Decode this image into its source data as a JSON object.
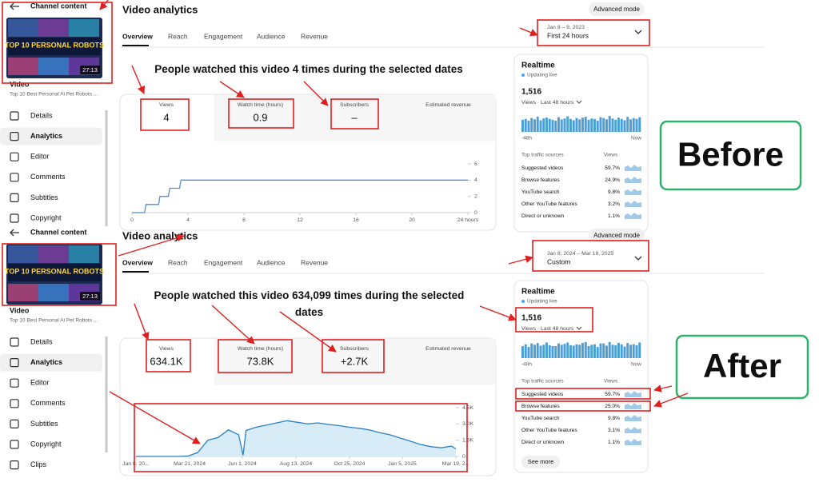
{
  "panels": [
    {
      "label": "Before",
      "sidebar": {
        "back": "Channel content",
        "thumb_title": "TOP 10 PERSONAL ROBOTS",
        "duration": "27:13",
        "video_label": "Video",
        "video_title": "Top 10 Best Personal Ai Pet Robots ...",
        "nav": [
          "Details",
          "Analytics",
          "Editor",
          "Comments",
          "Subtitles",
          "Copyright"
        ],
        "active": "Analytics"
      },
      "header": {
        "title": "Video analytics",
        "advanced": "Advanced mode",
        "tabs": [
          "Overview",
          "Reach",
          "Engagement",
          "Audience",
          "Revenue"
        ],
        "date_range": "Jan 8 – 9, 2023",
        "date_preset": "First 24 hours"
      },
      "headline": "People watched this video 4 times during the selected dates",
      "cards": [
        {
          "label": "Views",
          "value": "4"
        },
        {
          "label": "Watch time (hours)",
          "value": "0.9"
        },
        {
          "label": "Subscribers",
          "value": "–"
        },
        {
          "label": "Estimated revenue"
        }
      ],
      "chart": {
        "type": "line",
        "color": "#4f8fd6",
        "area": false,
        "x": [
          0,
          0.9,
          1,
          1.9,
          2,
          2.6,
          2.7,
          3.4,
          3.5,
          24
        ],
        "values": [
          0,
          0,
          1,
          1,
          2,
          2,
          3,
          3,
          4,
          4
        ],
        "xlim": [
          0,
          24
        ],
        "ylim": [
          0,
          6
        ],
        "xticks": [
          0,
          4,
          8,
          12,
          16,
          20,
          {
            "value": 24,
            "label": "24 hours"
          }
        ],
        "yticks": [
          0,
          2,
          4,
          6
        ]
      },
      "realtime": {
        "title": "Realtime",
        "status": "Updating live",
        "count": "1,516",
        "period": "Views · Last 48 hours",
        "bars": [
          28,
          30,
          26,
          32,
          29,
          35,
          27,
          31,
          33,
          30,
          28,
          26,
          34,
          29,
          31,
          36,
          30,
          27,
          32,
          29,
          33,
          35,
          28,
          31,
          30,
          26,
          34,
          32,
          29,
          37,
          31,
          28,
          33,
          30,
          27,
          35,
          29,
          32,
          30,
          34
        ],
        "start": "-48h",
        "end": "Now",
        "sources_title": "Top traffic sources",
        "views_header": "Views",
        "sources": [
          {
            "name": "Suggested videos",
            "share": "59.7%"
          },
          {
            "name": "Browse features",
            "share": "24.9%"
          },
          {
            "name": "YouTube search",
            "share": "9.8%"
          },
          {
            "name": "Other YouTube features",
            "share": "3.2%"
          },
          {
            "name": "Direct or unknown",
            "share": "1.1%"
          }
        ]
      }
    },
    {
      "label": "After",
      "sidebar": {
        "back": "Channel content",
        "thumb_title": "TOP 10 PERSONAL ROBOTS",
        "duration": "27:13",
        "video_label": "Video",
        "video_title": "Top 10 Best Personal Ai Pet Robots ...",
        "nav": [
          "Details",
          "Analytics",
          "Editor",
          "Comments",
          "Subtitles",
          "Copyright",
          "Clips"
        ],
        "active": "Analytics"
      },
      "header": {
        "title": "Video analytics",
        "advanced": "Advanced mode",
        "tabs": [
          "Overview",
          "Reach",
          "Engagement",
          "Audience",
          "Revenue"
        ],
        "date_range": "Jan 8, 2024 – Mar 19, 2025",
        "date_preset": "Custom"
      },
      "headline": "People watched this video 634,099 times during the selected dates",
      "cards": [
        {
          "label": "Views",
          "value": "634.1K"
        },
        {
          "label": "Watch time (hours)",
          "value": "73.8K"
        },
        {
          "label": "Subscribers",
          "value": "+2.7K"
        },
        {
          "label": "Estimated revenue"
        }
      ],
      "chart": {
        "type": "line",
        "color": "#2a7fc4",
        "area": true,
        "area_color": "#d8ecf8",
        "x": [
          0,
          14,
          28,
          42,
          56,
          70,
          84,
          98,
          112,
          126,
          140,
          146,
          150,
          164,
          178,
          192,
          206,
          220,
          234,
          248,
          262,
          276,
          290,
          304,
          318,
          332,
          346,
          360,
          374,
          388,
          402,
          416,
          430,
          436
        ],
        "values": [
          0,
          0,
          0,
          0,
          0,
          20,
          350,
          1500,
          1750,
          2450,
          2000,
          100,
          2400,
          2700,
          2900,
          3100,
          3300,
          3150,
          3000,
          3100,
          2950,
          2850,
          2700,
          2600,
          2450,
          2200,
          2000,
          1700,
          1400,
          1100,
          900,
          800,
          950,
          700
        ],
        "xlim": [
          0,
          436
        ],
        "ylim": [
          0,
          4500
        ],
        "xticks": [
          {
            "value": 0,
            "label": "Jan 8, 20..."
          },
          {
            "value": 73,
            "label": "Mar 21, 2024"
          },
          {
            "value": 145,
            "label": "Jun 1, 2024"
          },
          {
            "value": 218,
            "label": "Aug 13, 2024"
          },
          {
            "value": 291,
            "label": "Oct 25, 2024"
          },
          {
            "value": 363,
            "label": "Jan 5, 2025"
          },
          {
            "value": 436,
            "label": "Mar 19, 2..."
          }
        ],
        "yticks": [
          0,
          {
            "value": 1500,
            "label": "1.5K"
          },
          {
            "value": 3000,
            "label": "3.0K"
          },
          {
            "value": 4500,
            "label": "4.5K"
          }
        ]
      },
      "realtime": {
        "title": "Realtime",
        "status": "Updating live",
        "count": "1,516",
        "period": "Views · Last 48 hours",
        "bars": [
          27,
          31,
          25,
          33,
          30,
          34,
          28,
          30,
          35,
          29,
          27,
          27,
          33,
          30,
          32,
          35,
          29,
          28,
          31,
          30,
          34,
          36,
          27,
          30,
          31,
          25,
          33,
          33,
          28,
          36,
          30,
          29,
          34,
          31,
          26,
          34,
          30,
          31,
          29,
          35
        ],
        "start": "-48h",
        "end": "Now",
        "sources_title": "Top traffic sources",
        "views_header": "Views",
        "sources": [
          {
            "name": "Suggested videos",
            "share": "59.7%"
          },
          {
            "name": "Browse features",
            "share": "25.0%"
          },
          {
            "name": "YouTube search",
            "share": "9.8%"
          },
          {
            "name": "Other YouTube features",
            "share": "3.1%"
          },
          {
            "name": "Direct or unknown",
            "share": "1.1%"
          }
        ],
        "see_more": "See more"
      }
    }
  ]
}
